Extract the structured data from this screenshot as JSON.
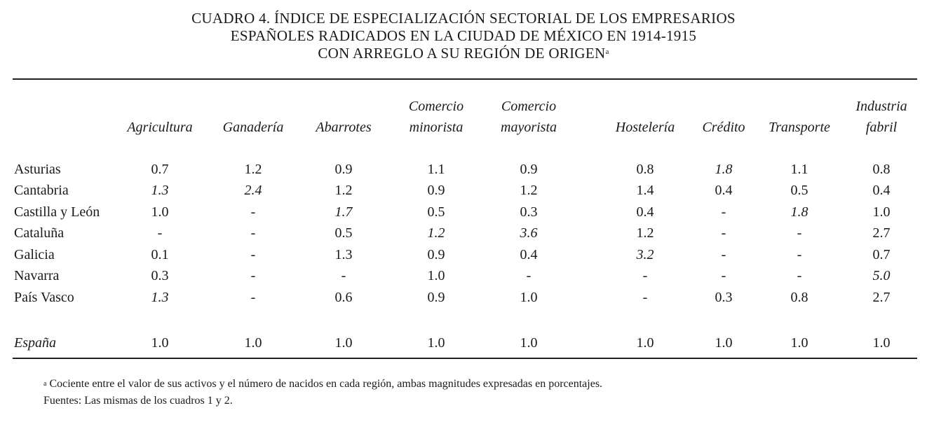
{
  "title": {
    "lines": [
      "CUADRO 4. ÍNDICE DE ESPECIALIZACIÓN SECTORIAL DE LOS EMPRESARIOS",
      "ESPAÑOLES RADICADOS EN LA CIUDAD DE MÉXICO EN 1914-1915",
      "CON ARREGLO A SU REGIÓN DE ORIGEN"
    ],
    "footnote_marker": "a"
  },
  "table": {
    "columns": [
      [
        "Agricultura"
      ],
      [
        "Ganadería"
      ],
      [
        "Abarrotes"
      ],
      [
        "Comercio",
        "minorista"
      ],
      [
        "Comercio",
        "mayorista"
      ],
      [
        "Hostelería"
      ],
      [
        "Crédito"
      ],
      [
        "Transporte"
      ],
      [
        "Industria",
        "fabril"
      ]
    ],
    "rows": [
      {
        "label": "Asturias",
        "values": [
          "0.7",
          "1.2",
          "0.9",
          "1.1",
          "0.9",
          "0.8",
          "1.8",
          "1.1",
          "0.8"
        ],
        "italic": [
          6
        ]
      },
      {
        "label": "Cantabria",
        "values": [
          "1.3",
          "2.4",
          "1.2",
          "0.9",
          "1.2",
          "1.4",
          "0.4",
          "0.5",
          "0.4"
        ],
        "italic": [
          0,
          1
        ]
      },
      {
        "label": "Castilla y León",
        "values": [
          "1.0",
          "-",
          "1.7",
          "0.5",
          "0.3",
          "0.4",
          "-",
          "1.8",
          "1.0"
        ],
        "italic": [
          2,
          7
        ]
      },
      {
        "label": "Cataluña",
        "values": [
          "-",
          "-",
          "0.5",
          "1.2",
          "3.6",
          "1.2",
          "-",
          "-",
          "2.7"
        ],
        "italic": [
          3,
          4
        ]
      },
      {
        "label": "Galicia",
        "values": [
          "0.1",
          "-",
          "1.3",
          "0.9",
          "0.4",
          "3.2",
          "-",
          "-",
          "0.7"
        ],
        "italic": [
          5
        ]
      },
      {
        "label": "Navarra",
        "values": [
          "0.3",
          "-",
          "-",
          "1.0",
          "-",
          "-",
          "-",
          "-",
          "5.0"
        ],
        "italic": [
          8
        ]
      },
      {
        "label": "País Vasco",
        "values": [
          "1.3",
          "-",
          "0.6",
          "0.9",
          "1.0",
          "-",
          "0.3",
          "0.8",
          "2.7"
        ],
        "italic": [
          0
        ]
      }
    ],
    "total": {
      "label": "España",
      "values": [
        "1.0",
        "1.0",
        "1.0",
        "1.0",
        "1.0",
        "1.0",
        "1.0",
        "1.0",
        "1.0"
      ]
    }
  },
  "footnotes": {
    "note_marker": "a",
    "note": "Cociente entre el valor de sus activos y el número de nacidos en cada región, ambas magnitudes expresadas en porcentajes.",
    "sources": "Fuentes: Las mismas de los cuadros 1 y 2."
  }
}
